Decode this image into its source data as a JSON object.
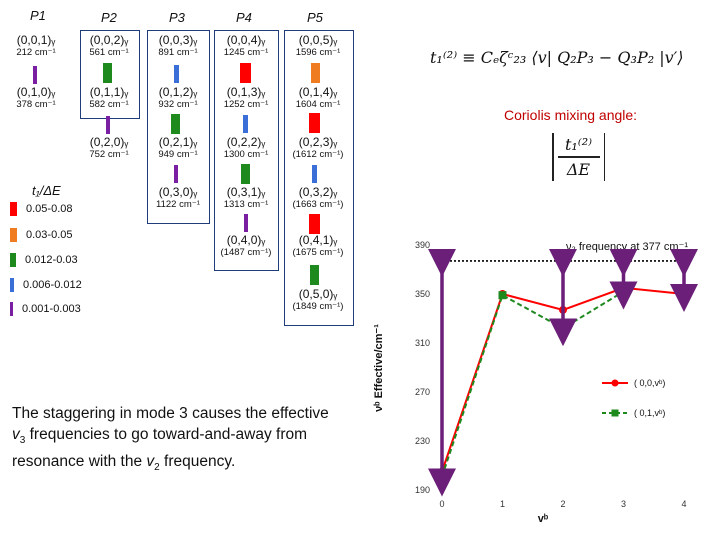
{
  "headers": [
    "P1",
    "P2",
    "P3",
    "P4",
    "P5"
  ],
  "levels": [
    {
      "state": "(0,0,1)ᵧ",
      "energy": "212 cm⁻¹",
      "color": "#7b1fa2"
    },
    {
      "state": "(0,1,0)ᵧ",
      "energy": "378 cm⁻¹",
      "color": ""
    },
    {
      "state": "(0,0,2)ᵧ",
      "energy": "561 cm⁻¹",
      "color": "#1e8a1e"
    },
    {
      "state": "(0,1,1)ᵧ",
      "energy": "582 cm⁻¹",
      "color": "#7b1fa2"
    },
    {
      "state": "(0,2,0)ᵧ",
      "energy": "752 cm⁻¹",
      "color": ""
    },
    {
      "state": "(0,0,3)ᵧ",
      "energy": "891 cm⁻¹",
      "color": "#3a6fd8"
    },
    {
      "state": "(0,1,2)ᵧ",
      "energy": "932 cm⁻¹",
      "color": "#1e8a1e"
    },
    {
      "state": "(0,2,1)ᵧ",
      "energy": "949 cm⁻¹",
      "color": "#7b1fa2"
    },
    {
      "state": "(0,3,0)ᵧ",
      "energy": "1122 cm⁻¹",
      "color": ""
    },
    {
      "state": "(0,0,4)ᵧ",
      "energy": "1245 cm⁻¹",
      "color": "#ff0000"
    },
    {
      "state": "(0,1,3)ᵧ",
      "energy": "1252 cm⁻¹",
      "color": "#3a6fd8"
    },
    {
      "state": "(0,2,2)ᵧ",
      "energy": "1300 cm⁻¹",
      "color": "#1e8a1e"
    },
    {
      "state": "(0,3,1)ᵧ",
      "energy": "1313 cm⁻¹",
      "color": "#7b1fa2"
    },
    {
      "state": "(0,4,0)ᵧ",
      "energy": "(1487 cm⁻¹)",
      "color": ""
    },
    {
      "state": "(0,0,5)ᵧ",
      "energy": "1596 cm⁻¹",
      "color": "#f07c22"
    },
    {
      "state": "(0,1,4)ᵧ",
      "energy": "1604 cm⁻¹",
      "color": "#ff0000"
    },
    {
      "state": "(0,2,3)ᵧ",
      "energy": "(1612 cm⁻¹)",
      "color": "#3a6fd8"
    },
    {
      "state": "(0,3,2)ᵧ",
      "energy": "(1663 cm⁻¹)",
      "color": "#ff0000"
    },
    {
      "state": "(0,4,1)ᵧ",
      "energy": "(1675 cm⁻¹)",
      "color": ""
    },
    {
      "state": "(0,5,0)ᵧ",
      "energy": "(1849 cm⁻¹)",
      "color": ""
    }
  ],
  "legend": {
    "title": "t₁/ΔE",
    "items": [
      {
        "label": "0.05-0.08",
        "color": "#ff0000"
      },
      {
        "label": "0.03-0.05",
        "color": "#f07c22"
      },
      {
        "label": "0.012-0.03",
        "color": "#1e8a1e"
      },
      {
        "label": "0.006-0.012",
        "color": "#3a6fd8"
      },
      {
        "label": "0.001-0.003",
        "color": "#7b1fa2"
      }
    ]
  },
  "equation_t1": "t₁⁽²⁾ ≡ Cₑζᶜ₂₃ ⟨v| Q₂P₃ − Q₃P₂ |v′⟩",
  "coriolis_label": "Coriolis mixing angle:",
  "mixing_angle": {
    "numerator": "t₁⁽²⁾",
    "denominator": "ΔE"
  },
  "caption": {
    "line1": "The staggering in mode 3 causes the effective",
    "line2_var": "v",
    "line2_sub": "3",
    "line2_rest": " frequencies to go toward-and-away from",
    "line3_pre": "resonance with the ",
    "line3_var": "v",
    "line3_sub": "2",
    "line3_post": " frequency."
  },
  "chart_data": {
    "type": "line",
    "x": [
      0,
      1,
      2,
      3,
      4
    ],
    "xlabel": "vᵇ",
    "ylabel": "νᵇ Effective/cm⁻¹",
    "ylim": [
      190,
      390
    ],
    "yticks": [
      190,
      230,
      270,
      310,
      350,
      390
    ],
    "xticks": [
      0,
      1,
      2,
      3,
      4
    ],
    "reference_line": {
      "value": 377,
      "label": "ν₂ frequency at 377 cm⁻¹",
      "color": "#000000"
    },
    "series": [
      {
        "name": "( 0,0,vᵇ)",
        "values": [
          205,
          350,
          337,
          355,
          350
        ],
        "color": "#ff0000",
        "style": "solid",
        "marker": "circle"
      },
      {
        "name": "( 0,1,vᵇ)",
        "values": [
          201,
          349,
          322,
          352,
          null
        ],
        "color": "#1e8a1e",
        "style": "dashed",
        "marker": "square"
      }
    ],
    "arrows_at_x": [
      0,
      2,
      3,
      4
    ],
    "arrow_color": "#6b1f78"
  }
}
